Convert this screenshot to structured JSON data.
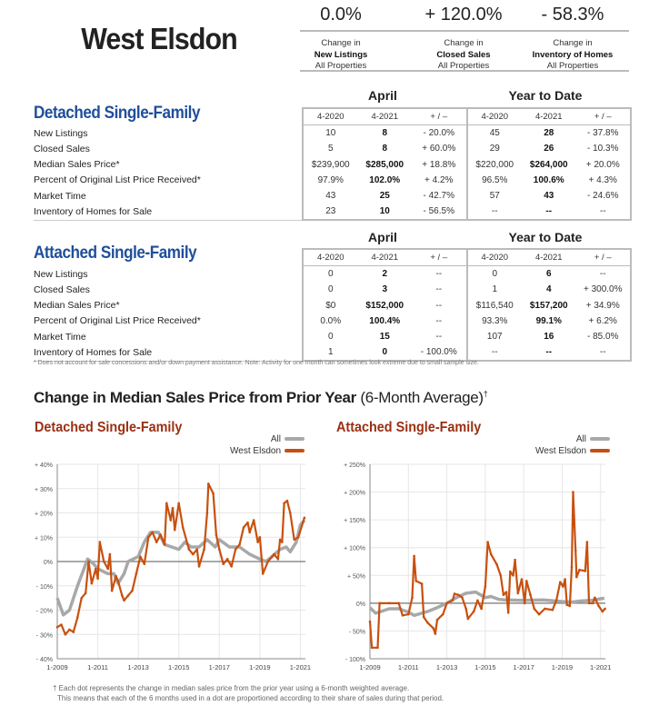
{
  "title": "West Elsdon",
  "kpis": [
    {
      "value": "0.0%",
      "line1": "Change in",
      "line2": "New Listings",
      "line3": "All Properties"
    },
    {
      "value": "+ 120.0%",
      "line1": "Change in",
      "line2": "Closed Sales",
      "line3": "All Properties"
    },
    {
      "value": "- 58.3%",
      "line1": "Change in",
      "line2": "Inventory of Homes",
      "line3": "All Properties"
    }
  ],
  "groups": {
    "april": "April",
    "ytd": "Year to Date"
  },
  "columns": [
    "4-2020",
    "4-2021",
    "+ / –",
    "4-2020",
    "4-2021",
    "+ / –"
  ],
  "detached": {
    "title": "Detached Single-Family",
    "rows": [
      [
        "New Listings",
        "10",
        "8",
        "- 20.0%",
        "45",
        "28",
        "- 37.8%"
      ],
      [
        "Closed Sales",
        "5",
        "8",
        "+ 60.0%",
        "29",
        "26",
        "- 10.3%"
      ],
      [
        "Median Sales Price*",
        "$239,900",
        "$285,000",
        "+ 18.8%",
        "$220,000",
        "$264,000",
        "+ 20.0%"
      ],
      [
        "Percent of Original List Price Received*",
        "97.9%",
        "102.0%",
        "+ 4.2%",
        "96.5%",
        "100.6%",
        "+ 4.3%"
      ],
      [
        "Market Time",
        "43",
        "25",
        "- 42.7%",
        "57",
        "43",
        "- 24.6%"
      ],
      [
        "Inventory of Homes for Sale",
        "23",
        "10",
        "- 56.5%",
        "--",
        "--",
        "--"
      ]
    ]
  },
  "attached": {
    "title": "Attached Single-Family",
    "rows": [
      [
        "New Listings",
        "0",
        "2",
        "--",
        "0",
        "6",
        "--"
      ],
      [
        "Closed Sales",
        "0",
        "3",
        "--",
        "1",
        "4",
        "+ 300.0%"
      ],
      [
        "Median Sales Price*",
        "$0",
        "$152,000",
        "--",
        "$116,540",
        "$157,200",
        "+ 34.9%"
      ],
      [
        "Percent of Original List Price Received*",
        "0.0%",
        "100.4%",
        "--",
        "93.3%",
        "99.1%",
        "+ 6.2%"
      ],
      [
        "Market Time",
        "0",
        "15",
        "--",
        "107",
        "16",
        "- 85.0%"
      ],
      [
        "Inventory of Homes for Sale",
        "1",
        "0",
        "- 100.0%",
        "--",
        "--",
        "--"
      ]
    ]
  },
  "footnote": "* Does not account for sale concessions and/or down payment assistance. Note: Activity for one month can sometimes look extreme due to small sample size.",
  "section_title": {
    "bold": "Change in Median Sales Price from Prior Year",
    "normal": " (6-Month Average)",
    "mark": "†"
  },
  "colors": {
    "all": "#a8a8a8",
    "local": "#c8500e",
    "title_blue": "#1f4e9c",
    "chart_title": "#9a2f12"
  },
  "chart_data": [
    {
      "type": "line",
      "title": "Detached Single-Family",
      "ylim": [
        -40,
        40
      ],
      "yticks": [
        -40,
        -30,
        -20,
        -10,
        0,
        10,
        20,
        30,
        40
      ],
      "ytick_labels": [
        "- 40%",
        "- 30%",
        "- 20%",
        "- 10%",
        "0%",
        "+ 10%",
        "+ 20%",
        "+ 30%",
        "+ 40%"
      ],
      "xlim": [
        2009,
        2021.25
      ],
      "xticks": [
        2009,
        2011,
        2013,
        2015,
        2017,
        2019,
        2021
      ],
      "xtick_labels": [
        "1-2009",
        "1-2011",
        "1-2013",
        "1-2015",
        "1-2017",
        "1-2019",
        "1-2021"
      ],
      "legend": "top-right",
      "series": [
        {
          "name": "All",
          "points": [
            [
              2009,
              -15
            ],
            [
              2009.3,
              -22
            ],
            [
              2009.6,
              -20
            ],
            [
              2010,
              -10
            ],
            [
              2010.5,
              1
            ],
            [
              2010.8,
              -1
            ],
            [
              2011,
              -3
            ],
            [
              2011.5,
              -5
            ],
            [
              2011.8,
              -5
            ],
            [
              2012,
              -9
            ],
            [
              2012.3,
              -5
            ],
            [
              2012.5,
              0
            ],
            [
              2013,
              2
            ],
            [
              2013.3,
              8
            ],
            [
              2013.6,
              12
            ],
            [
              2014,
              12
            ],
            [
              2014.3,
              7
            ],
            [
              2015,
              5
            ],
            [
              2015.3,
              8
            ],
            [
              2015.6,
              6
            ],
            [
              2016,
              6
            ],
            [
              2016.4,
              9
            ],
            [
              2016.8,
              6
            ],
            [
              2017,
              9
            ],
            [
              2017.5,
              6
            ],
            [
              2018,
              6
            ],
            [
              2018.5,
              3
            ],
            [
              2019,
              1
            ],
            [
              2019.3,
              0
            ],
            [
              2019.6,
              2
            ],
            [
              2020,
              5
            ],
            [
              2020.3,
              6
            ],
            [
              2020.5,
              4
            ],
            [
              2020.8,
              8
            ],
            [
              2021,
              15
            ],
            [
              2021.2,
              17
            ]
          ]
        },
        {
          "name": "West Elsdon",
          "points": [
            [
              2009,
              -27
            ],
            [
              2009.2,
              -26
            ],
            [
              2009.4,
              -30
            ],
            [
              2009.6,
              -28
            ],
            [
              2009.8,
              -29
            ],
            [
              2010,
              -23
            ],
            [
              2010.2,
              -15
            ],
            [
              2010.4,
              -13
            ],
            [
              2010.55,
              0
            ],
            [
              2010.7,
              -9
            ],
            [
              2010.9,
              -3
            ],
            [
              2011,
              -7
            ],
            [
              2011.1,
              8
            ],
            [
              2011.3,
              0
            ],
            [
              2011.5,
              -3
            ],
            [
              2011.6,
              3
            ],
            [
              2011.7,
              -12
            ],
            [
              2011.9,
              -6
            ],
            [
              2012,
              -8
            ],
            [
              2012.2,
              -14
            ],
            [
              2012.3,
              -16
            ],
            [
              2012.5,
              -14
            ],
            [
              2012.7,
              -12
            ],
            [
              2012.9,
              -5
            ],
            [
              2013.1,
              2
            ],
            [
              2013.3,
              -1
            ],
            [
              2013.5,
              10
            ],
            [
              2013.7,
              12
            ],
            [
              2013.9,
              8
            ],
            [
              2014.1,
              11
            ],
            [
              2014.3,
              7
            ],
            [
              2014.4,
              24
            ],
            [
              2014.6,
              17
            ],
            [
              2014.7,
              22
            ],
            [
              2014.8,
              13
            ],
            [
              2015,
              24
            ],
            [
              2015.2,
              14
            ],
            [
              2015.5,
              5
            ],
            [
              2015.7,
              3
            ],
            [
              2015.9,
              5
            ],
            [
              2016,
              -2
            ],
            [
              2016.25,
              5
            ],
            [
              2016.4,
              20
            ],
            [
              2016.46,
              32
            ],
            [
              2016.7,
              28
            ],
            [
              2016.85,
              11
            ],
            [
              2017,
              5
            ],
            [
              2017.2,
              -1
            ],
            [
              2017.4,
              1
            ],
            [
              2017.6,
              -2
            ],
            [
              2017.8,
              5
            ],
            [
              2018,
              7
            ],
            [
              2018.2,
              14
            ],
            [
              2018.4,
              16
            ],
            [
              2018.5,
              12
            ],
            [
              2018.7,
              17
            ],
            [
              2018.9,
              8
            ],
            [
              2019,
              10
            ],
            [
              2019.15,
              -5
            ],
            [
              2019.4,
              0
            ],
            [
              2019.7,
              3
            ],
            [
              2019.9,
              1
            ],
            [
              2020,
              9
            ],
            [
              2020.1,
              8
            ],
            [
              2020.2,
              24
            ],
            [
              2020.35,
              25
            ],
            [
              2020.5,
              20
            ],
            [
              2020.7,
              9
            ],
            [
              2020.9,
              10
            ],
            [
              2021.2,
              18
            ]
          ]
        }
      ]
    },
    {
      "type": "line",
      "title": "Attached Single-Family",
      "ylim": [
        -100,
        250
      ],
      "yticks": [
        -100,
        -50,
        0,
        50,
        100,
        150,
        200,
        250
      ],
      "ytick_labels": [
        "- 100%",
        "- 50%",
        "0%",
        "+ 50%",
        "+ 100%",
        "+ 150%",
        "+ 200%",
        "+ 250%"
      ],
      "xlim": [
        2009,
        2021.25
      ],
      "xticks": [
        2009,
        2011,
        2013,
        2015,
        2017,
        2019,
        2021
      ],
      "xtick_labels": [
        "1-2009",
        "1-2011",
        "1-2013",
        "1-2015",
        "1-2017",
        "1-2019",
        "1-2021"
      ],
      "legend": "top-right",
      "series": [
        {
          "name": "All",
          "points": [
            [
              2009,
              -8
            ],
            [
              2009.3,
              -18
            ],
            [
              2010,
              -10
            ],
            [
              2010.5,
              -10
            ],
            [
              2011,
              -16
            ],
            [
              2011.3,
              -22
            ],
            [
              2012,
              -15
            ],
            [
              2012.5,
              -8
            ],
            [
              2013,
              0
            ],
            [
              2013.5,
              10
            ],
            [
              2014,
              18
            ],
            [
              2014.5,
              20
            ],
            [
              2015,
              10
            ],
            [
              2015.3,
              12
            ],
            [
              2015.7,
              7
            ],
            [
              2016,
              6
            ],
            [
              2017,
              5
            ],
            [
              2018,
              6
            ],
            [
              2019,
              3
            ],
            [
              2019.5,
              2
            ],
            [
              2020,
              4
            ],
            [
              2020.5,
              5
            ],
            [
              2021,
              8
            ],
            [
              2021.2,
              9
            ]
          ]
        },
        {
          "name": "West Elsdon",
          "points": [
            [
              2009,
              -33
            ],
            [
              2009.1,
              -80
            ],
            [
              2009.4,
              -80
            ],
            [
              2009.5,
              0
            ],
            [
              2010,
              0
            ],
            [
              2010.5,
              0
            ],
            [
              2010.7,
              -22
            ],
            [
              2011,
              -20
            ],
            [
              2011.2,
              10
            ],
            [
              2011.3,
              85
            ],
            [
              2011.4,
              40
            ],
            [
              2011.7,
              35
            ],
            [
              2011.8,
              -25
            ],
            [
              2012,
              -35
            ],
            [
              2012.3,
              -45
            ],
            [
              2012.4,
              -55
            ],
            [
              2012.5,
              -30
            ],
            [
              2012.8,
              -20
            ],
            [
              2013,
              0
            ],
            [
              2013.3,
              5
            ],
            [
              2013.4,
              17
            ],
            [
              2013.6,
              15
            ],
            [
              2013.8,
              10
            ],
            [
              2014,
              -10
            ],
            [
              2014.1,
              -28
            ],
            [
              2014.4,
              -15
            ],
            [
              2014.6,
              5
            ],
            [
              2014.8,
              -10
            ],
            [
              2015,
              30
            ],
            [
              2015.13,
              110
            ],
            [
              2015.3,
              88
            ],
            [
              2015.6,
              70
            ],
            [
              2015.8,
              50
            ],
            [
              2015.95,
              15
            ],
            [
              2016.1,
              20
            ],
            [
              2016.2,
              -17
            ],
            [
              2016.3,
              57
            ],
            [
              2016.45,
              50
            ],
            [
              2016.55,
              78
            ],
            [
              2016.7,
              18
            ],
            [
              2016.9,
              43
            ],
            [
              2017.05,
              0
            ],
            [
              2017.15,
              40
            ],
            [
              2017.35,
              15
            ],
            [
              2017.55,
              -10
            ],
            [
              2017.8,
              -20
            ],
            [
              2018.1,
              -10
            ],
            [
              2018.5,
              -12
            ],
            [
              2018.7,
              5
            ],
            [
              2018.9,
              38
            ],
            [
              2019.05,
              30
            ],
            [
              2019.15,
              43
            ],
            [
              2019.25,
              -3
            ],
            [
              2019.4,
              -5
            ],
            [
              2019.5,
              65
            ],
            [
              2019.57,
              200
            ],
            [
              2019.7,
              95
            ],
            [
              2019.75,
              47
            ],
            [
              2019.9,
              60
            ],
            [
              2020.2,
              58
            ],
            [
              2020.3,
              110
            ],
            [
              2020.4,
              0
            ],
            [
              2020.6,
              0
            ],
            [
              2020.7,
              10
            ],
            [
              2020.9,
              -5
            ],
            [
              2021.1,
              -15
            ],
            [
              2021.23,
              -10
            ]
          ]
        }
      ]
    }
  ],
  "bottom_note": {
    "line1": "† Each dot represents the change in median sales price from the prior year using a 6-month weighted average.",
    "line2": "This means that each of the 6 months used in a dot are proportioned according to their share of sales during that period."
  }
}
